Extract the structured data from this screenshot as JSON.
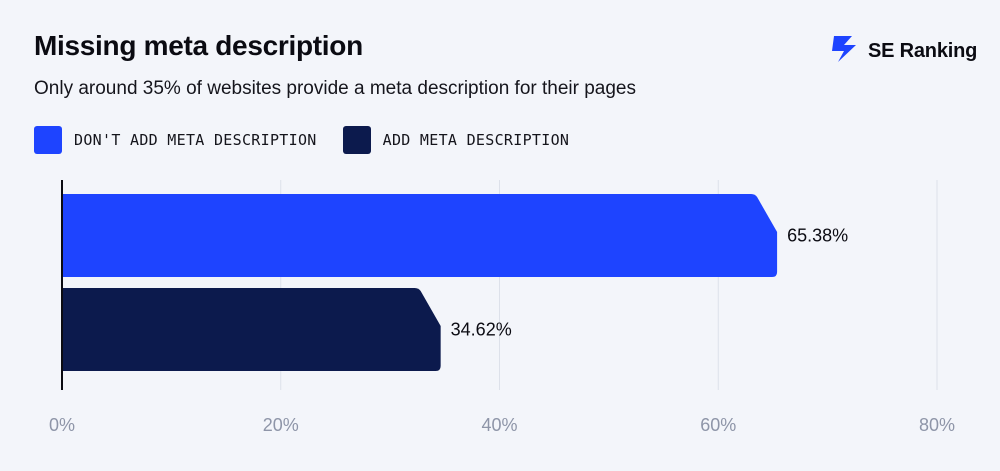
{
  "header": {
    "title": "Missing meta description",
    "subtitle": "Only around 35% of websites provide a meta description for their pages"
  },
  "brand": {
    "name": "SE Ranking",
    "icon": "se-ranking-logo-icon",
    "color": "#1e44ff"
  },
  "legend": [
    {
      "label": "DON'T ADD META DESCRIPTION",
      "color": "#1e44ff"
    },
    {
      "label": "ADD META DESCRIPTION",
      "color": "#0c1a4d"
    }
  ],
  "chart_data": {
    "type": "bar",
    "orientation": "horizontal",
    "title": "Missing meta description",
    "subtitle": "Only around 35% of websites provide a meta description for their pages",
    "categories": [
      "DON'T ADD META DESCRIPTION",
      "ADD META DESCRIPTION"
    ],
    "values": [
      65.38,
      34.62
    ],
    "value_labels": [
      "65.38%",
      "34.62%"
    ],
    "colors": [
      "#1e44ff",
      "#0c1a4d"
    ],
    "xlim": [
      0,
      80
    ],
    "xticks": [
      0,
      20,
      40,
      60,
      80
    ],
    "xtick_labels": [
      "0%",
      "20%",
      "40%",
      "60%",
      "80%"
    ],
    "xlabel": "",
    "ylabel": "",
    "grid": true,
    "legend_position": "top-left"
  }
}
